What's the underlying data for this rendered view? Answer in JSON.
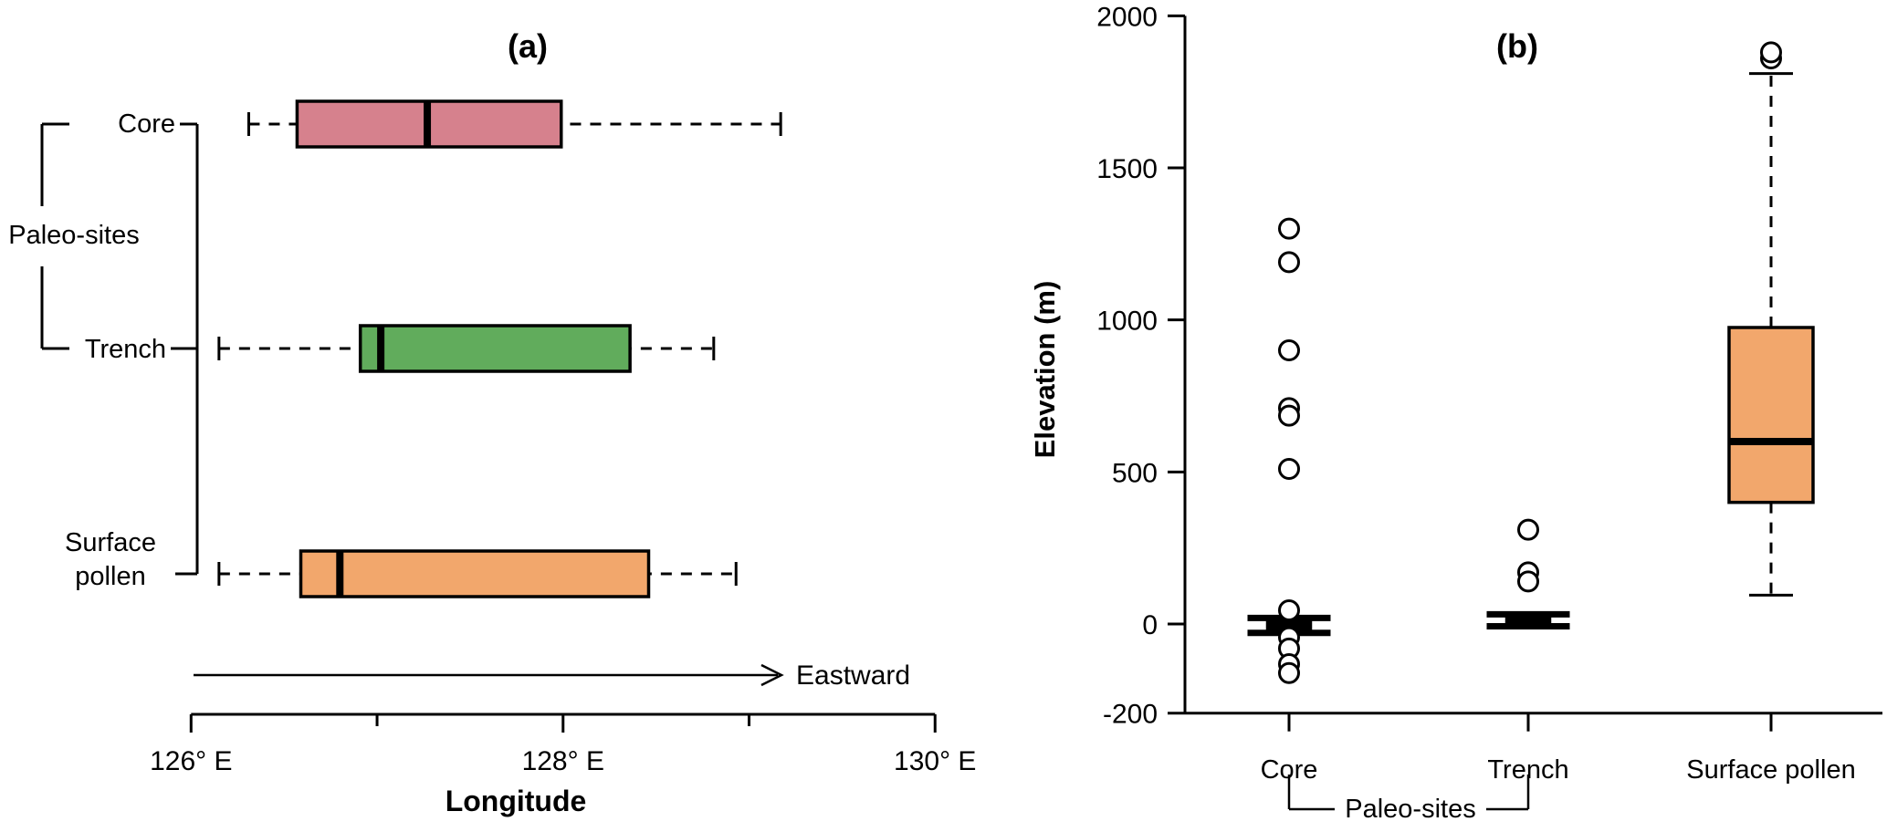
{
  "texts": {
    "eastward": "Eastward",
    "paleo_sites_a": "Paleo-sites",
    "paleo_sites_b": "Paleo-sites"
  },
  "chart_data": [
    {
      "type": "boxplot",
      "panel": "a",
      "title": "(a)",
      "orientation": "horizontal",
      "xlabel": "Longitude",
      "x_unit": "degrees east",
      "xlim": [
        126,
        130
      ],
      "arrow_label": "Eastward",
      "group_label": "Paleo-sites",
      "grouped_categories": [
        "Core",
        "Trench"
      ],
      "x_ticks": [
        {
          "value": 126,
          "label": "126° E",
          "major": true
        },
        {
          "value": 127,
          "label": "",
          "major": false
        },
        {
          "value": 128,
          "label": "128° E",
          "major": true
        },
        {
          "value": 129,
          "label": "",
          "major": false
        },
        {
          "value": 130,
          "label": "130° E",
          "major": true
        }
      ],
      "series": [
        {
          "name": "Core",
          "color": "#D6818D",
          "whisker_low": 126.31,
          "q1": 126.57,
          "median": 127.27,
          "q3": 127.99,
          "whisker_high": 129.17,
          "outliers": []
        },
        {
          "name": "Trench",
          "color": "#61AC5C",
          "whisker_low": 126.15,
          "q1": 126.91,
          "median": 127.02,
          "q3": 128.36,
          "whisker_high": 128.81,
          "outliers": []
        },
        {
          "name": "Surface pollen",
          "color": "#F2A76C",
          "whisker_low": 126.15,
          "q1": 126.59,
          "median": 126.8,
          "q3": 128.46,
          "whisker_high": 128.93,
          "outliers": []
        }
      ]
    },
    {
      "type": "boxplot",
      "panel": "b",
      "title": "(b)",
      "orientation": "vertical",
      "ylabel": "Elevation (m)",
      "ylim": [
        -200,
        2000
      ],
      "y_ticks": [
        {
          "value": 2000,
          "label": "2000"
        },
        {
          "value": 1500,
          "label": "1500"
        },
        {
          "value": 1000,
          "label": "1000"
        },
        {
          "value": 500,
          "label": "500"
        },
        {
          "value": 0,
          "label": "0"
        },
        {
          "value": -200,
          "label": "-200"
        }
      ],
      "group_label": "Paleo-sites",
      "grouped_categories": [
        "Core",
        "Trench"
      ],
      "series": [
        {
          "name": "Core",
          "color": "#000000",
          "whisker_low": -20,
          "q1": -10,
          "median": 0,
          "q3": 12,
          "whisker_high": 20,
          "outliers": [
            1300,
            1190,
            900,
            710,
            685,
            510,
            45,
            -30,
            -55,
            -90,
            -110
          ]
        },
        {
          "name": "Trench",
          "color": "#000000",
          "whisker_low": -5,
          "q1": 8,
          "median": 15,
          "q3": 25,
          "whisker_high": 32,
          "outliers": [
            310,
            170,
            140
          ]
        },
        {
          "name": "Surface pollen",
          "color": "#F2A76C",
          "whisker_low": 95,
          "q1": 400,
          "median": 600,
          "q3": 975,
          "whisker_high": 1810,
          "outliers": [
            1860,
            1880
          ]
        }
      ]
    }
  ]
}
